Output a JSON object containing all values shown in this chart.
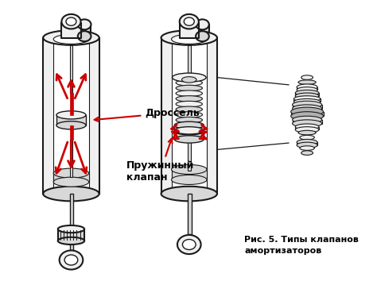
{
  "bg_color": "#ffffff",
  "arrow_color": "#cc0000",
  "line_color": "#1a1a1a",
  "label_drossel": "Дроссель",
  "label_spring": "Пружинный\nклапан",
  "caption_line1": "Рис. 5. Типы клапанов",
  "caption_line2": "амортизаторов",
  "fig_width": 4.74,
  "fig_height": 3.88,
  "dpi": 100,
  "fill_light": "#f0f0f0",
  "fill_mid": "#d8d8d8",
  "fill_dark": "#b0b0b0",
  "fill_white": "#ffffff"
}
